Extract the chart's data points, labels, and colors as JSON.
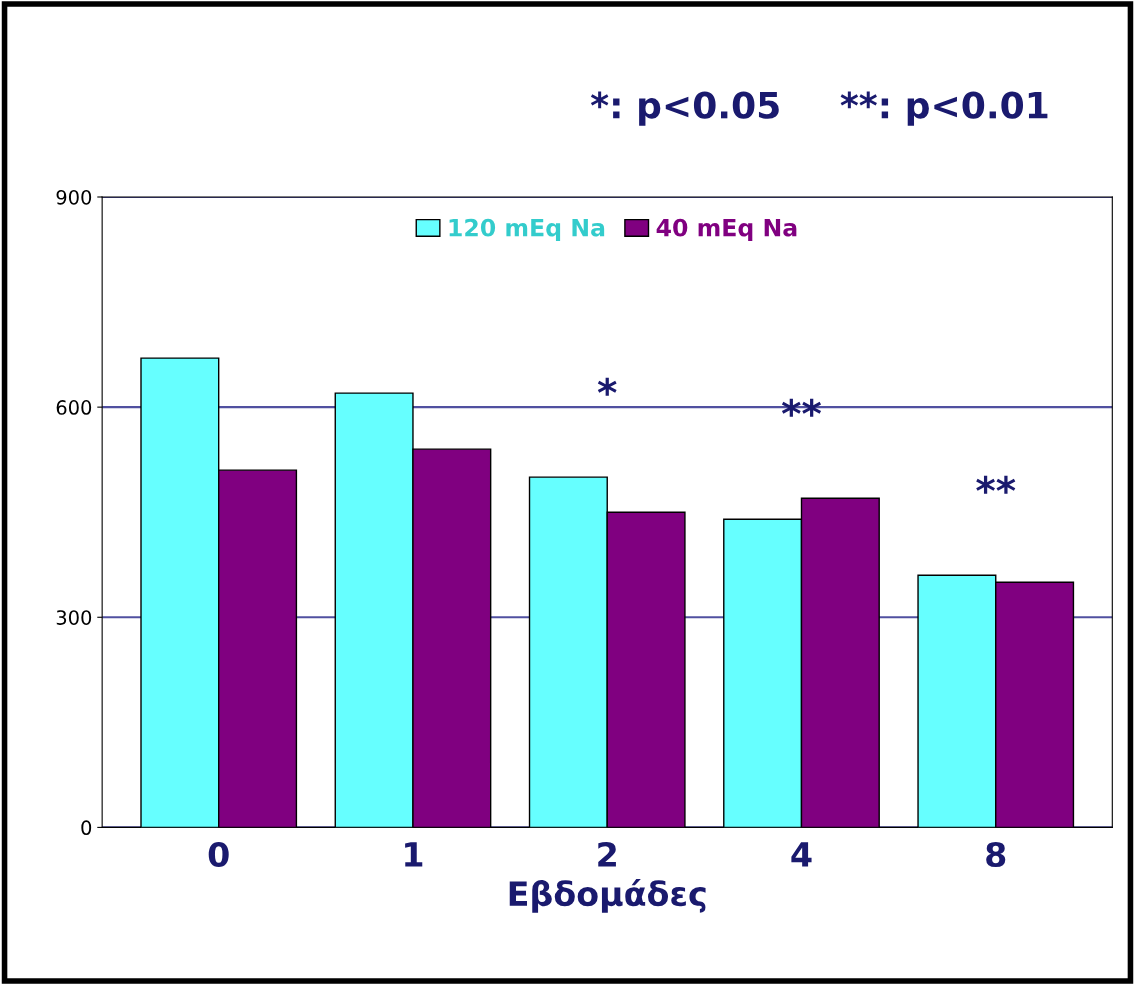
{
  "chart_data": {
    "type": "bar",
    "xlabel": "Εβδομάδες",
    "categories": [
      "0",
      "1",
      "2",
      "4",
      "8"
    ],
    "series": [
      {
        "name": "120 mEq Na",
        "color": "#66ffff",
        "values": [
          670,
          620,
          500,
          440,
          360
        ]
      },
      {
        "name": "40 mEq Na",
        "color": "#800080",
        "values": [
          510,
          540,
          450,
          470,
          350
        ]
      }
    ],
    "ylim": [
      0,
      900
    ],
    "yticks": [
      0,
      300,
      600,
      900
    ],
    "grid": "y",
    "legend": "top",
    "annotations": [
      "*: p<0.05",
      "**: p<0.01",
      {
        "text": "*",
        "x": "2",
        "y": 500
      },
      {
        "text": "**",
        "x": "4",
        "y": 470
      },
      {
        "text": "**",
        "x": "8",
        "y": 360
      }
    ]
  }
}
